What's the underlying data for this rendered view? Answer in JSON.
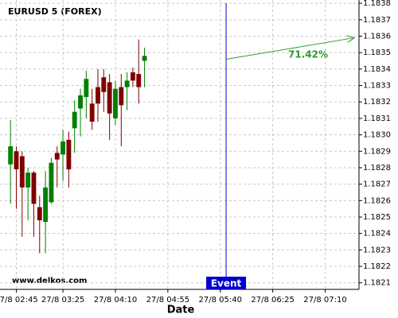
{
  "chart_data": {
    "type": "candlestick",
    "title": "EURUSD 5 (FOREX)",
    "xlabel": "Date",
    "watermark": "www.delkos.com",
    "x": [
      "27/8 02:40",
      "27/8 02:45",
      "27/8 02:50",
      "27/8 02:55",
      "27/8 03:00",
      "27/8 03:05",
      "27/8 03:10",
      "27/8 03:15",
      "27/8 03:20",
      "27/8 03:25",
      "27/8 03:30",
      "27/8 03:35",
      "27/8 03:40",
      "27/8 03:45",
      "27/8 03:50",
      "27/8 03:55",
      "27/8 04:00",
      "27/8 04:05",
      "27/8 04:10",
      "27/8 04:15",
      "27/8 04:20",
      "27/8 04:25",
      "27/8 04:30",
      "27/8 04:35"
    ],
    "open": [
      1.18282,
      1.1829,
      1.18287,
      1.18268,
      1.18277,
      1.18256,
      1.18247,
      1.18259,
      1.18289,
      1.18288,
      1.18297,
      1.18304,
      1.18316,
      1.18323,
      1.18319,
      1.18329,
      1.18335,
      1.18332,
      1.1831,
      1.18329,
      1.18329,
      1.18338,
      1.18337,
      1.18345
    ],
    "high": [
      1.18309,
      1.18293,
      1.1829,
      1.1828,
      1.18278,
      1.18263,
      1.18278,
      1.18286,
      1.18293,
      1.18303,
      1.18302,
      1.18321,
      1.18328,
      1.18339,
      1.18328,
      1.1834,
      1.1834,
      1.18337,
      1.18333,
      1.18337,
      1.18338,
      1.18341,
      1.18358,
      1.18353
    ],
    "low": [
      1.18258,
      1.18255,
      1.18238,
      1.18248,
      1.18238,
      1.18228,
      1.18228,
      1.18258,
      1.18268,
      1.18272,
      1.18268,
      1.18289,
      1.18299,
      1.1831,
      1.18303,
      1.18308,
      1.18314,
      1.18297,
      1.18306,
      1.18293,
      1.18315,
      1.18329,
      1.18319,
      1.18329
    ],
    "close": [
      1.18293,
      1.18279,
      1.18268,
      1.18277,
      1.18258,
      1.18248,
      1.18268,
      1.18283,
      1.18285,
      1.18296,
      1.18279,
      1.18314,
      1.18324,
      1.18334,
      1.18308,
      1.18319,
      1.18326,
      1.18313,
      1.18328,
      1.18318,
      1.18333,
      1.18333,
      1.18329,
      1.18348
    ],
    "up_color": "#008000",
    "down_color": "#800000",
    "xlim": [
      "27/8 02:31",
      "27/8 07:39"
    ],
    "xticks": [
      "27/8 02:45",
      "27/8 03:25",
      "27/8 04:10",
      "27/8 04:55",
      "27/8 05:40",
      "27/8 06:25",
      "27/8 07:10"
    ],
    "ylim": [
      1.18206,
      1.18382
    ],
    "yticks": [
      1.1821,
      1.1822,
      1.1823,
      1.1824,
      1.1825,
      1.1826,
      1.1827,
      1.1828,
      1.1829,
      {
        "value": 1.183,
        "label": "1.1830"
      },
      1.1831,
      1.1832,
      1.1833,
      1.1834,
      1.1835,
      1.1836,
      1.1837,
      1.1838
    ],
    "grid": true,
    "event": {
      "x": "27/8 05:45",
      "label": "Event",
      "color": "#0000cc"
    },
    "forecast_arrow": {
      "x": [
        "27/8 05:45",
        "27/8 07:35"
      ],
      "y": [
        1.18346,
        1.18359
      ],
      "label": "71.42%",
      "color": "#2e9b2e"
    }
  }
}
